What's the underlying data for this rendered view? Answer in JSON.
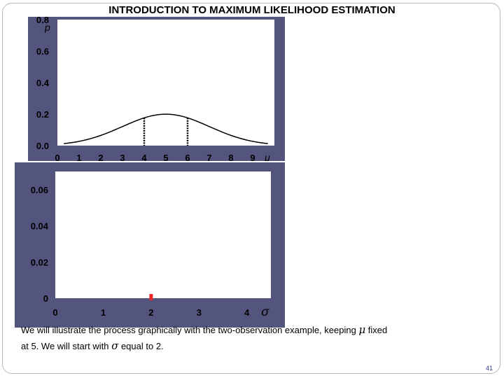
{
  "slide": {
    "title": "INTRODUCTION TO MAXIMUM LIKELIHOOD ESTIMATION",
    "caption_line1_part1": "We will illustrate the process graphically with the two-observation example, keeping ",
    "caption_mu": "μ",
    "caption_line1_part2": " fixed",
    "caption_line2_part1": "at 5.  We will start with ",
    "caption_sigma": "σ",
    "caption_line2_part2": " equal to 2.",
    "page_number": "41"
  },
  "colors": {
    "panel_background": "#54557f",
    "plot_background": "#ffffff",
    "curve": "#000000",
    "highlight": "#e8262a"
  },
  "chart_data": [
    {
      "type": "line",
      "ylabel": "p",
      "xlabel": "μ",
      "xlim": [
        0,
        10
      ],
      "ylim": [
        0,
        0.8
      ],
      "yticks": [
        "0.0",
        "0.2",
        "0.4",
        "0.6",
        "0.8"
      ],
      "xticks": [
        "0",
        "1",
        "2",
        "3",
        "4",
        "5",
        "6",
        "7",
        "8",
        "9"
      ],
      "grid": false,
      "series": [
        {
          "kind": "normal-density",
          "mean": 5,
          "sd": 2
        }
      ],
      "observations": [
        4,
        6
      ]
    },
    {
      "type": "scatter",
      "xlabel": "σ",
      "xlim": [
        0,
        4.5
      ],
      "ylim": [
        0,
        0.07
      ],
      "yticks": [
        "0",
        "0.02",
        "0.04",
        "0.06"
      ],
      "xticks": [
        "0",
        "1",
        "2",
        "3",
        "4"
      ],
      "grid": false,
      "points": [
        {
          "x": 2,
          "y": 0
        }
      ]
    }
  ]
}
